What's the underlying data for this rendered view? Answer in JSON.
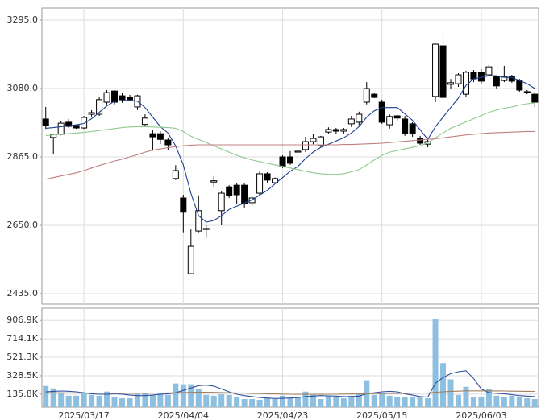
{
  "chart_data": [
    {
      "type": "candlestick",
      "categories": [
        null,
        null,
        null,
        null,
        null,
        "2025/03/17",
        null,
        null,
        null,
        null,
        null,
        null,
        null,
        null,
        null,
        null,
        null,
        null,
        "2025/04/04",
        null,
        null,
        null,
        null,
        null,
        null,
        null,
        null,
        null,
        null,
        null,
        null,
        "2025/04/23",
        null,
        null,
        null,
        null,
        null,
        null,
        null,
        null,
        null,
        null,
        null,
        null,
        "2025/05/15",
        null,
        null,
        null,
        null,
        null,
        null,
        null,
        null,
        null,
        null,
        null,
        null,
        "2025/06/03",
        null,
        null,
        null,
        null,
        null,
        null,
        null
      ],
      "open": [
        2984,
        2926,
        2936,
        2974,
        2964,
        2956,
        2999,
        2999,
        3037,
        3072,
        3057,
        3052,
        3022,
        2967,
        2938,
        2938,
        2918,
        2797,
        2736,
        2498,
        2632,
        2637,
        2786,
        2696,
        2771,
        2776,
        2776,
        2721,
        2751,
        2812,
        2784,
        2865,
        2865,
        2880,
        2888,
        2913,
        2900,
        2943,
        2951,
        2946,
        2969,
        2974,
        3037,
        3062,
        3037,
        2966,
        2994,
        2984,
        2969,
        2923,
        2905,
        3055,
        3214,
        3093,
        3095,
        3062,
        3131,
        3131,
        3123,
        3118,
        3105,
        3118,
        3105,
        3070,
        3062
      ],
      "high": [
        3022,
        2936,
        2979,
        2984,
        2966,
        2994,
        3012,
        3052,
        3075,
        3075,
        3065,
        3060,
        3060,
        2999,
        2951,
        2946,
        2926,
        2839,
        2746,
        2637,
        2744,
        2650,
        2805,
        2756,
        2776,
        2784,
        2784,
        2744,
        2822,
        2817,
        2800,
        2870,
        2883,
        2885,
        2928,
        2936,
        2931,
        2958,
        2956,
        2956,
        2994,
        3007,
        3100,
        3065,
        3045,
        2999,
        2997,
        2994,
        2974,
        2931,
        2926,
        3224,
        3254,
        3110,
        3128,
        3136,
        3138,
        3141,
        3156,
        3121,
        3151,
        3123,
        3110,
        3075,
        3070
      ],
      "low": [
        2953,
        2875,
        2933,
        2956,
        2953,
        2953,
        2992,
        2994,
        3030,
        3030,
        3035,
        3040,
        3012,
        2959,
        2886,
        2905,
        2888,
        2792,
        2628,
        2498,
        2628,
        2610,
        2770,
        2650,
        2736,
        2716,
        2706,
        2711,
        2746,
        2784,
        2779,
        2830,
        2840,
        2860,
        2880,
        2905,
        2895,
        2936,
        2938,
        2938,
        2959,
        2964,
        3030,
        3050,
        2969,
        2954,
        2979,
        2931,
        2928,
        2903,
        2895,
        3037,
        3045,
        3080,
        3085,
        3052,
        3100,
        3093,
        3120,
        3080,
        3100,
        3098,
        3070,
        3062,
        3022
      ],
      "close": [
        2964,
        2936,
        2971,
        2961,
        2956,
        2989,
        3004,
        3045,
        3067,
        3037,
        3045,
        3045,
        3057,
        2987,
        2928,
        2920,
        2903,
        2822,
        2691,
        2584,
        2696,
        2640,
        2790,
        2751,
        2744,
        2746,
        2718,
        2736,
        2812,
        2792,
        2797,
        2835,
        2845,
        2883,
        2913,
        2923,
        2928,
        2951,
        2946,
        2951,
        2984,
        2999,
        3080,
        3052,
        2974,
        2992,
        2987,
        2938,
        2938,
        2908,
        2913,
        3219,
        3052,
        3098,
        3123,
        3131,
        3110,
        3103,
        3148,
        3088,
        3118,
        3103,
        3075,
        3067,
        3037
      ],
      "up_color": "#ffffff",
      "down_color": "#000000",
      "lines": [
        {
          "color": "#1f3f8f",
          "values": [
            2955,
            2957,
            2960,
            2963,
            2966,
            2970,
            2985,
            3005,
            3025,
            3040,
            3042,
            3043,
            3040,
            3020,
            2990,
            2960,
            2940,
            2900,
            2840,
            2750,
            2680,
            2660,
            2665,
            2680,
            2700,
            2710,
            2720,
            2730,
            2745,
            2760,
            2780,
            2800,
            2820,
            2835,
            2860,
            2880,
            2895,
            2905,
            2915,
            2925,
            2940,
            2960,
            2990,
            3010,
            3020,
            3020,
            3020,
            3000,
            2980,
            2950,
            2920,
            2960,
            2990,
            3020,
            3050,
            3090,
            3110,
            3115,
            3120,
            3120,
            3115,
            3115,
            3105,
            3095,
            3080
          ]
        },
        {
          "color": "#8fc98f",
          "values": [
            2932,
            2934,
            2936,
            2938,
            2940,
            2942,
            2945,
            2948,
            2951,
            2954,
            2957,
            2959,
            2960,
            2960,
            2959,
            2958,
            2957,
            2955,
            2945,
            2930,
            2920,
            2910,
            2900,
            2890,
            2880,
            2870,
            2862,
            2855,
            2850,
            2845,
            2840,
            2835,
            2830,
            2825,
            2820,
            2815,
            2812,
            2810,
            2810,
            2812,
            2818,
            2825,
            2840,
            2855,
            2870,
            2880,
            2885,
            2890,
            2895,
            2900,
            2910,
            2925,
            2940,
            2955,
            2965,
            2975,
            2985,
            2995,
            3005,
            3012,
            3018,
            3022,
            3028,
            3032,
            3035
          ]
        },
        {
          "color": "#c08080",
          "values": [
            2795,
            2800,
            2805,
            2810,
            2815,
            2822,
            2830,
            2838,
            2845,
            2852,
            2858,
            2865,
            2872,
            2880,
            2886,
            2890,
            2894,
            2897,
            2900,
            2902,
            2903,
            2903,
            2903,
            2903,
            2903,
            2903,
            2903,
            2903,
            2903,
            2903,
            2903,
            2903,
            2903,
            2903,
            2903,
            2903,
            2903,
            2903,
            2903,
            2904,
            2904,
            2905,
            2906,
            2907,
            2908,
            2910,
            2912,
            2914,
            2916,
            2918,
            2920,
            2922,
            2925,
            2928,
            2931,
            2934,
            2936,
            2938,
            2940,
            2941,
            2942,
            2943,
            2944,
            2945,
            2945
          ]
        }
      ],
      "ylim": [
        2402,
        3333
      ],
      "yticks": [
        {
          "value": 3295,
          "label": "3295.0"
        },
        {
          "value": 3080,
          "label": "3080.0"
        },
        {
          "value": 2865,
          "label": "2865.0"
        },
        {
          "value": 2650,
          "label": "2650.0"
        },
        {
          "value": 2435,
          "label": "2435.0"
        }
      ],
      "grid": true
    },
    {
      "type": "bar",
      "values": [
        221000,
        196000,
        144000,
        119000,
        119000,
        144000,
        127000,
        119000,
        162000,
        110000,
        92000,
        92000,
        136000,
        144000,
        127000,
        144000,
        127000,
        247000,
        239000,
        239000,
        187000,
        127000,
        119000,
        136000,
        127000,
        110000,
        84000,
        84000,
        76000,
        92000,
        84000,
        119000,
        92000,
        101000,
        162000,
        127000,
        84000,
        119000,
        110000,
        92000,
        119000,
        144000,
        281000,
        127000,
        144000,
        119000,
        110000,
        101000,
        101000,
        101000,
        92000,
        924000,
        461000,
        290000,
        127000,
        213000,
        101000,
        110000,
        187000,
        119000,
        101000,
        119000,
        101000,
        92000,
        84000
      ],
      "color": "#8dbfe0",
      "lines": [
        {
          "color": "#2f4f9f",
          "values": [
            160000,
            165000,
            168000,
            166000,
            160000,
            150000,
            140000,
            135000,
            135000,
            140000,
            135000,
            125000,
            120000,
            120000,
            125000,
            135000,
            140000,
            150000,
            175000,
            200000,
            225000,
            230000,
            220000,
            190000,
            160000,
            135000,
            120000,
            110000,
            100000,
            95000,
            90000,
            92000,
            95000,
            100000,
            110000,
            115000,
            120000,
            118000,
            115000,
            110000,
            110000,
            115000,
            140000,
            150000,
            160000,
            165000,
            160000,
            140000,
            125000,
            110000,
            105000,
            250000,
            310000,
            350000,
            370000,
            380000,
            300000,
            190000,
            150000,
            145000,
            140000,
            130000,
            120000,
            115000,
            110000
          ]
        },
        {
          "color": "#a08060",
          "values": [
            150000,
            150000,
            150000,
            149000,
            148000,
            148000,
            147000,
            146000,
            146000,
            145000,
            145000,
            145000,
            145000,
            145000,
            146000,
            147000,
            148000,
            150000,
            152000,
            154000,
            155000,
            155000,
            154000,
            152000,
            150000,
            148000,
            146000,
            144000,
            142000,
            140000,
            138000,
            136000,
            135000,
            134000,
            134000,
            134000,
            134000,
            135000,
            135000,
            136000,
            137000,
            138000,
            140000,
            141000,
            142000,
            143000,
            144000,
            145000,
            146000,
            147000,
            148000,
            155000,
            160000,
            165000,
            167000,
            170000,
            170000,
            170000,
            170000,
            169000,
            168000,
            167000,
            166000,
            165000,
            164000
          ]
        }
      ],
      "ylim": [
        0,
        1035000
      ],
      "yticks": [
        {
          "value": 906900,
          "label": "906.9K"
        },
        {
          "value": 714100,
          "label": "714.1K"
        },
        {
          "value": 521300,
          "label": "521.3K"
        },
        {
          "value": 328500,
          "label": "328.5K"
        },
        {
          "value": 135800,
          "label": "135.8K"
        }
      ],
      "grid": true
    }
  ]
}
